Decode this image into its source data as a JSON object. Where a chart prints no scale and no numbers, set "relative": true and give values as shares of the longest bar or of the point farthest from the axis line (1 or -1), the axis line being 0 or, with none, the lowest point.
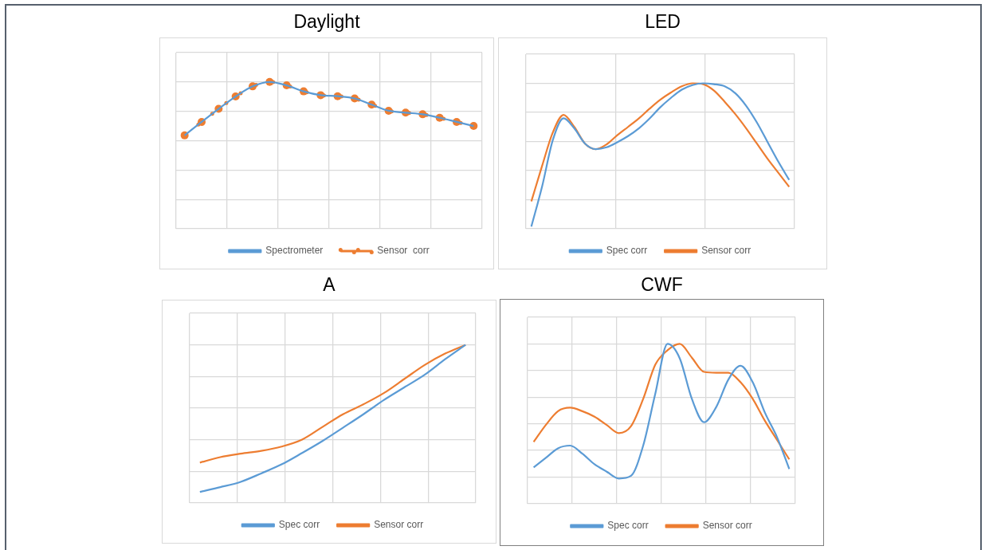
{
  "chart_data": [
    {
      "type": "line",
      "title": "Daylight",
      "relative": true,
      "grid": true,
      "legend": "bottom",
      "categories": [
        null,
        null,
        null,
        null,
        null,
        null,
        null,
        null,
        null,
        null,
        null,
        null,
        null,
        null,
        null,
        null,
        null,
        null
      ],
      "series": [
        {
          "name": "Spectrometer",
          "color": "#5b9bd5",
          "marker": "none",
          "values": [
            0.636,
            0.728,
            0.817,
            0.901,
            0.97,
            1.0,
            0.977,
            0.936,
            0.91,
            0.903,
            0.888,
            0.846,
            0.804,
            0.791,
            0.78,
            0.756,
            0.728,
            0.7
          ]
        },
        {
          "name": "Sensor  corr",
          "color": "#ed7d31",
          "marker": "circle",
          "line_style": "dotted",
          "values": [
            0.636,
            0.728,
            0.817,
            0.901,
            0.97,
            1.0,
            0.977,
            0.936,
            0.91,
            0.903,
            0.888,
            0.846,
            0.804,
            0.791,
            0.78,
            0.756,
            0.728,
            0.7
          ]
        }
      ]
    },
    {
      "type": "line",
      "title": "LED",
      "relative": true,
      "grid": true,
      "legend": "bottom",
      "categories": [
        null,
        null,
        null,
        null,
        null,
        null,
        null,
        null,
        null,
        null,
        null,
        null,
        null,
        null,
        null,
        null,
        null,
        null,
        null,
        null,
        null,
        null,
        null,
        null,
        null
      ],
      "series": [
        {
          "name": "Spec corr",
          "color": "#5b9bd5",
          "values": [
            0.015,
            0.29,
            0.61,
            0.76,
            0.69,
            0.585,
            0.547,
            0.56,
            0.595,
            0.637,
            0.69,
            0.758,
            0.835,
            0.9,
            0.956,
            0.988,
            1.0,
            0.994,
            0.979,
            0.931,
            0.845,
            0.73,
            0.595,
            0.46,
            0.336
          ]
        },
        {
          "name": "Sensor corr",
          "color": "#ed7d31",
          "values": [
            0.188,
            0.432,
            0.662,
            0.783,
            0.7,
            0.585,
            0.547,
            0.58,
            0.643,
            0.7,
            0.758,
            0.825,
            0.887,
            0.937,
            0.979,
            1.0,
            0.994,
            0.95,
            0.873,
            0.787,
            0.69,
            0.585,
            0.48,
            0.384,
            0.288
          ]
        }
      ]
    },
    {
      "type": "line",
      "title": "A",
      "relative": true,
      "grid": true,
      "legend": "bottom",
      "categories": [
        null,
        null,
        null,
        null,
        null,
        null,
        null,
        null,
        null,
        null,
        null,
        null,
        null,
        null
      ],
      "series": [
        {
          "name": "Spec corr",
          "color": "#5b9bd5",
          "values": [
            0.07,
            0.1,
            0.134,
            0.187,
            0.244,
            0.316,
            0.392,
            0.476,
            0.561,
            0.651,
            0.731,
            0.811,
            0.909,
            1.0
          ]
        },
        {
          "name": "Sensor corr",
          "color": "#ed7d31",
          "values": [
            0.255,
            0.29,
            0.312,
            0.33,
            0.357,
            0.401,
            0.481,
            0.561,
            0.624,
            0.695,
            0.784,
            0.873,
            0.945,
            1.0
          ]
        }
      ]
    },
    {
      "type": "line",
      "title": "CWF",
      "relative": true,
      "grid": true,
      "legend": "bottom",
      "categories": [
        null,
        null,
        null,
        null,
        null,
        null,
        null,
        null,
        null,
        null,
        null,
        null,
        null,
        null,
        null,
        null,
        null,
        null,
        null,
        null,
        null,
        null
      ],
      "series": [
        {
          "name": "Spec corr",
          "color": "#5b9bd5",
          "values": [
            0.227,
            0.287,
            0.347,
            0.364,
            0.313,
            0.247,
            0.201,
            0.158,
            0.175,
            0.364,
            0.691,
            1.0,
            0.91,
            0.656,
            0.51,
            0.605,
            0.777,
            0.863,
            0.76,
            0.57,
            0.416,
            0.218
          ]
        },
        {
          "name": "Sensor corr",
          "color": "#ed7d31",
          "values": [
            0.387,
            0.493,
            0.579,
            0.601,
            0.579,
            0.545,
            0.493,
            0.442,
            0.485,
            0.656,
            0.871,
            0.96,
            1.0,
            0.914,
            0.825,
            0.82,
            0.82,
            0.76,
            0.656,
            0.519,
            0.399,
            0.278
          ]
        }
      ]
    }
  ]
}
